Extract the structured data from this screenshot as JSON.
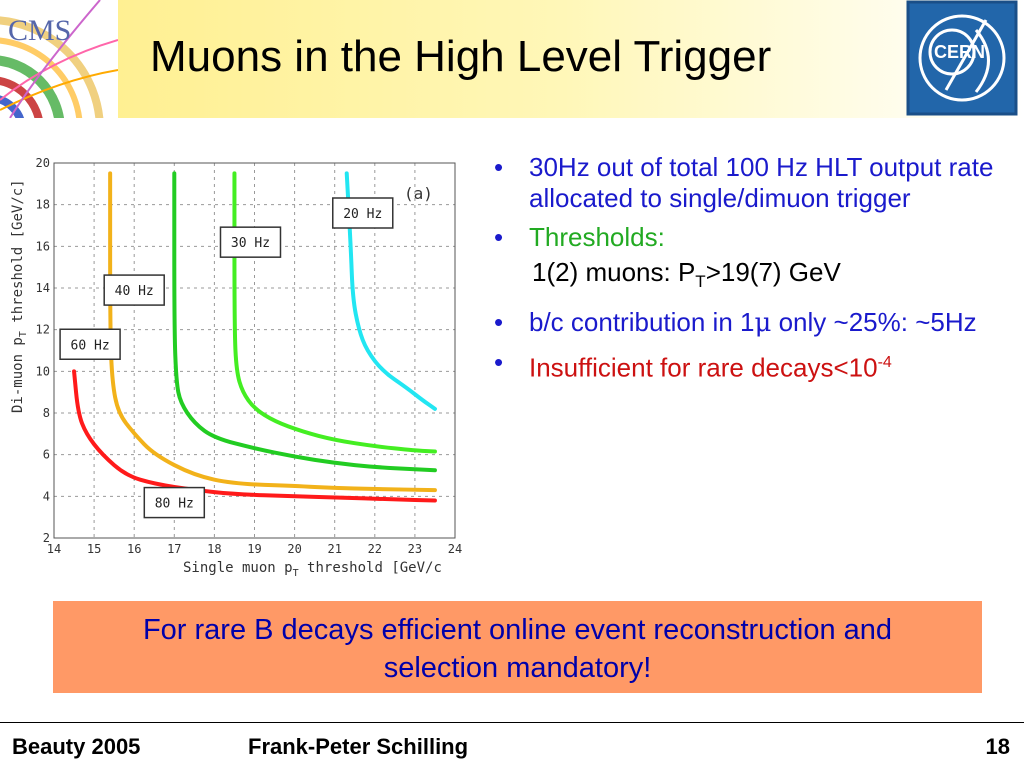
{
  "slide": {
    "title": "Muons in the High Level Trigger",
    "cms_logo_text": "CMS",
    "cern_logo_text": "CERN"
  },
  "bullets": {
    "b1": "30Hz out of total 100 Hz HLT output rate allocated to single/dimuon trigger",
    "b2": "Thresholds:",
    "b2_sub_pre": "1(2) muons:  P",
    "b2_sub_sub": "T",
    "b2_sub_post": ">19(7) GeV",
    "b3_pre": "b/c contribution in 1",
    "b3_mu": "μ",
    "b3_post": " only ~25%: ~5Hz",
    "b4_pre": "Insufficient for rare decays<10",
    "b4_sup": "-4"
  },
  "callout": {
    "line1": "For rare B decays efficient online event reconstruction and",
    "line2": "selection  mandatory!"
  },
  "footer": {
    "left": "Beauty 2005",
    "center": "Frank-Peter Schilling",
    "right": "18"
  },
  "colors": {
    "red": "#ff1a1a",
    "orange": "#f2b21a",
    "green": "#22cc22",
    "lightgreen": "#44ee22",
    "cyan": "#22e6f2",
    "blue_text": "#1a1acc",
    "green_text": "#22aa22",
    "red_text": "#cc1111",
    "callout_bg": "#ff9966"
  },
  "chart_data": {
    "type": "line",
    "panel_label": "(a)",
    "xlabel": "Single muon p",
    "xlabel_sub": "T",
    "xlabel_post": " threshold [GeV/c",
    "ylabel": "Di-muon p",
    "ylabel_sub": "T",
    "ylabel_post": " threshold [GeV/c]",
    "xlim": [
      14,
      24
    ],
    "ylim": [
      2,
      20
    ],
    "xticks": [
      14,
      15,
      16,
      17,
      18,
      19,
      20,
      21,
      22,
      23,
      24
    ],
    "yticks": [
      2,
      4,
      6,
      8,
      10,
      12,
      14,
      16,
      18,
      20
    ],
    "grid": true,
    "series": [
      {
        "name": "80 Hz",
        "color": "#ff1a1a",
        "points": [
          [
            14.5,
            10
          ],
          [
            14.6,
            8
          ],
          [
            14.8,
            7
          ],
          [
            15.2,
            6
          ],
          [
            15.8,
            5
          ],
          [
            16.5,
            4.6
          ],
          [
            17.5,
            4.3
          ],
          [
            18.5,
            4.1
          ],
          [
            20,
            4.0
          ],
          [
            21,
            3.95
          ],
          [
            22.5,
            3.85
          ],
          [
            23.5,
            3.8
          ]
        ]
      },
      {
        "name": "60 Hz",
        "color": "#f2b21a",
        "points": [
          [
            15.4,
            19.5
          ],
          [
            15.4,
            12
          ],
          [
            15.45,
            9.5
          ],
          [
            15.6,
            8
          ],
          [
            16,
            7
          ],
          [
            16.5,
            6
          ],
          [
            17.5,
            5
          ],
          [
            18.5,
            4.6
          ],
          [
            20,
            4.5
          ],
          [
            21,
            4.4
          ],
          [
            22,
            4.35
          ],
          [
            23.5,
            4.3
          ]
        ]
      },
      {
        "name": "40 Hz",
        "color": "#22cc22",
        "points": [
          [
            17,
            19.5
          ],
          [
            17,
            12
          ],
          [
            17.05,
            9.5
          ],
          [
            17.15,
            8.5
          ],
          [
            17.5,
            7.5
          ],
          [
            18,
            6.8
          ],
          [
            19,
            6.3
          ],
          [
            20,
            5.9
          ],
          [
            21,
            5.6
          ],
          [
            22,
            5.4
          ],
          [
            23,
            5.3
          ],
          [
            23.5,
            5.25
          ]
        ]
      },
      {
        "name": "30 Hz",
        "color": "#44ee22",
        "points": [
          [
            18.5,
            19.5
          ],
          [
            18.5,
            12
          ],
          [
            18.55,
            10
          ],
          [
            18.7,
            9
          ],
          [
            19,
            8.2
          ],
          [
            19.5,
            7.6
          ],
          [
            20.2,
            7.1
          ],
          [
            21,
            6.7
          ],
          [
            22,
            6.4
          ],
          [
            23,
            6.2
          ],
          [
            23.5,
            6.15
          ]
        ]
      },
      {
        "name": "20 Hz",
        "color": "#22e6f2",
        "points": [
          [
            21.3,
            19.5
          ],
          [
            21.4,
            16
          ],
          [
            21.45,
            13.5
          ],
          [
            21.6,
            12
          ],
          [
            21.8,
            11
          ],
          [
            22.2,
            10
          ],
          [
            22.8,
            9.2
          ],
          [
            23.2,
            8.6
          ],
          [
            23.5,
            8.2
          ]
        ]
      }
    ],
    "annotations": [
      {
        "text": "20 Hz",
        "x": 21.7,
        "y": 17.6
      },
      {
        "text": "30 Hz",
        "x": 18.9,
        "y": 16.2
      },
      {
        "text": "40 Hz",
        "x": 16.0,
        "y": 13.9
      },
      {
        "text": "60 Hz",
        "x": 14.9,
        "y": 11.3
      },
      {
        "text": "80 Hz",
        "x": 17.0,
        "y": 3.7
      }
    ]
  }
}
